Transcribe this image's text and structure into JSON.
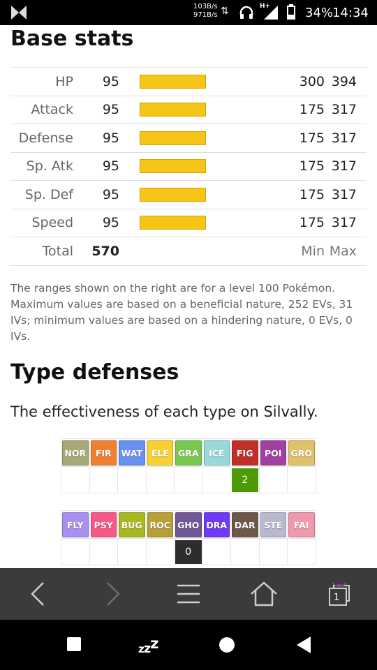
{
  "status": {
    "net_up": "103B/s",
    "net_down": "971B/s",
    "network_type": "H+",
    "battery_level": 0.34,
    "battery_percent": "34%",
    "time": "14:34"
  },
  "base_stats": {
    "heading": "Base stats",
    "rows": [
      {
        "label": "HP",
        "value": "95",
        "bar_fraction": 0.37,
        "min": "300",
        "max": "394"
      },
      {
        "label": "Attack",
        "value": "95",
        "bar_fraction": 0.37,
        "min": "175",
        "max": "317"
      },
      {
        "label": "Defense",
        "value": "95",
        "bar_fraction": 0.37,
        "min": "175",
        "max": "317"
      },
      {
        "label": "Sp. Atk",
        "value": "95",
        "bar_fraction": 0.37,
        "min": "175",
        "max": "317"
      },
      {
        "label": "Sp. Def",
        "value": "95",
        "bar_fraction": 0.37,
        "min": "175",
        "max": "317"
      },
      {
        "label": "Speed",
        "value": "95",
        "bar_fraction": 0.37,
        "min": "175",
        "max": "317"
      }
    ],
    "bar_color": "#f5c518",
    "total_label": "Total",
    "total_value": "570",
    "min_header": "Min",
    "max_header": "Max",
    "note": "The ranges shown on the right are for a level 100 Pokémon. Maximum values are based on a beneficial nature, 252 EVs, 31 IVs; minimum values are based on a hindering nature, 0 EVs, 0 IVs."
  },
  "type_defenses": {
    "heading": "Type defenses",
    "intro": "The effectiveness of each type on Silvally.",
    "grids": [
      {
        "types": [
          {
            "abbr": "NOR",
            "color": "#a8a878",
            "effect": ""
          },
          {
            "abbr": "FIR",
            "color": "#f08030",
            "effect": ""
          },
          {
            "abbr": "WAT",
            "color": "#6890f0",
            "effect": ""
          },
          {
            "abbr": "ELE",
            "color": "#f8d030",
            "effect": ""
          },
          {
            "abbr": "GRA",
            "color": "#78c850",
            "effect": ""
          },
          {
            "abbr": "ICE",
            "color": "#98d8d8",
            "effect": ""
          },
          {
            "abbr": "FIG",
            "color": "#c03028",
            "effect": "2",
            "effect_color": "#4e9a06"
          },
          {
            "abbr": "POI",
            "color": "#a040a0",
            "effect": ""
          },
          {
            "abbr": "GRO",
            "color": "#e0c068",
            "effect": ""
          }
        ]
      },
      {
        "types": [
          {
            "abbr": "FLY",
            "color": "#a890f0",
            "effect": ""
          },
          {
            "abbr": "PSY",
            "color": "#f85888",
            "effect": ""
          },
          {
            "abbr": "BUG",
            "color": "#a8b820",
            "effect": ""
          },
          {
            "abbr": "ROC",
            "color": "#b8a038",
            "effect": ""
          },
          {
            "abbr": "GHO",
            "color": "#705898",
            "effect": "0",
            "effect_color": "#2d2d2d"
          },
          {
            "abbr": "DRA",
            "color": "#7038f8",
            "effect": ""
          },
          {
            "abbr": "DAR",
            "color": "#705848",
            "effect": ""
          },
          {
            "abbr": "STE",
            "color": "#b8b8d0",
            "effect": ""
          },
          {
            "abbr": "FAI",
            "color": "#ee99ac",
            "effect": ""
          }
        ]
      }
    ]
  },
  "browser": {
    "icons": [
      "back-arrow-icon",
      "forward-arrow-icon",
      "menu-icon",
      "home-icon",
      "tabs-icon"
    ],
    "tab_count": "1",
    "tabs_accent": "#7a3fa0"
  },
  "nav": {
    "icons": [
      "recents-square-icon",
      "sleep-zzz-icon",
      "home-circle-icon",
      "back-triangle-icon"
    ],
    "sleep_text": "zzz"
  }
}
